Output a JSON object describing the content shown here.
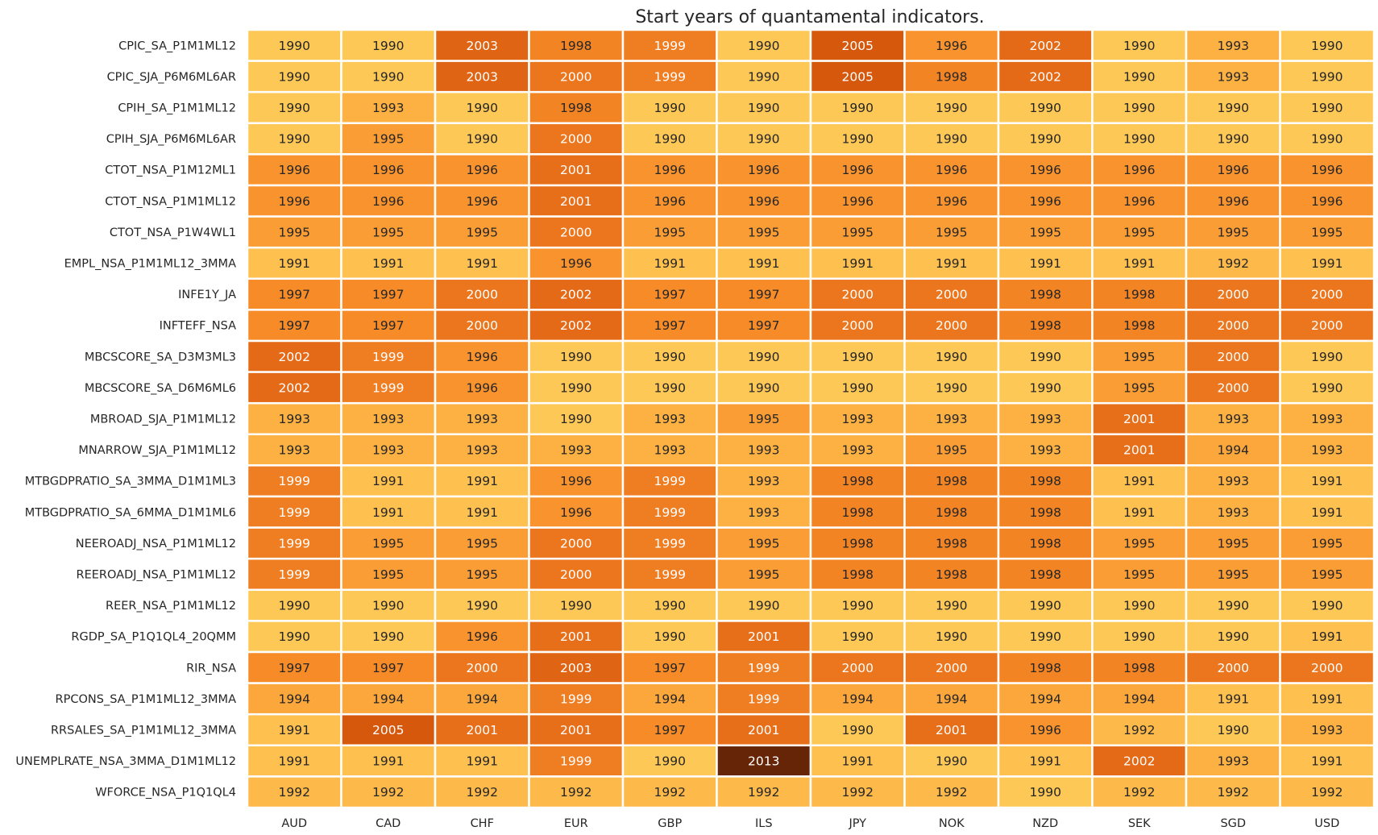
{
  "chart_data": {
    "type": "heatmap",
    "title": "Start years of quantamental indicators.",
    "xlabel": "",
    "ylabel": "",
    "colormap": "YlOrBr",
    "color_range": [
      1990,
      2013
    ],
    "columns": [
      "AUD",
      "CAD",
      "CHF",
      "EUR",
      "GBP",
      "ILS",
      "JPY",
      "NOK",
      "NZD",
      "SEK",
      "SGD",
      "USD"
    ],
    "rows": [
      "CPIC_SA_P1M1ML12",
      "CPIC_SJA_P6M6ML6AR",
      "CPIH_SA_P1M1ML12",
      "CPIH_SJA_P6M6ML6AR",
      "CTOT_NSA_P1M12ML1",
      "CTOT_NSA_P1M1ML12",
      "CTOT_NSA_P1W4WL1",
      "EMPL_NSA_P1M1ML12_3MMA",
      "INFE1Y_JA",
      "INFTEFF_NSA",
      "MBCSCORE_SA_D3M3ML3",
      "MBCSCORE_SA_D6M6ML6",
      "MBROAD_SJA_P1M1ML12",
      "MNARROW_SJA_P1M1ML12",
      "MTBGDPRATIO_SA_3MMA_D1M1ML3",
      "MTBGDPRATIO_SA_6MMA_D1M1ML6",
      "NEEROADJ_NSA_P1M1ML12",
      "REEROADJ_NSA_P1M1ML12",
      "REER_NSA_P1M1ML12",
      "RGDP_SA_P1Q1QL4_20QMM",
      "RIR_NSA",
      "RPCONS_SA_P1M1ML12_3MMA",
      "RRSALES_SA_P1M1ML12_3MMA",
      "UNEMPLRATE_NSA_3MMA_D1M1ML12",
      "WFORCE_NSA_P1Q1QL4"
    ],
    "values": [
      [
        1990,
        1990,
        2003,
        1998,
        1999,
        1990,
        2005,
        1996,
        2002,
        1990,
        1993,
        1990
      ],
      [
        1990,
        1990,
        2003,
        2000,
        1999,
        1990,
        2005,
        1998,
        2002,
        1990,
        1993,
        1990
      ],
      [
        1990,
        1993,
        1990,
        1998,
        1990,
        1990,
        1990,
        1990,
        1990,
        1990,
        1990,
        1990
      ],
      [
        1990,
        1995,
        1990,
        2000,
        1990,
        1990,
        1990,
        1990,
        1990,
        1990,
        1990,
        1990
      ],
      [
        1996,
        1996,
        1996,
        2001,
        1996,
        1996,
        1996,
        1996,
        1996,
        1996,
        1996,
        1996
      ],
      [
        1996,
        1996,
        1996,
        2001,
        1996,
        1996,
        1996,
        1996,
        1996,
        1996,
        1996,
        1996
      ],
      [
        1995,
        1995,
        1995,
        2000,
        1995,
        1995,
        1995,
        1995,
        1995,
        1995,
        1995,
        1995
      ],
      [
        1991,
        1991,
        1991,
        1996,
        1991,
        1991,
        1991,
        1991,
        1991,
        1991,
        1992,
        1991
      ],
      [
        1997,
        1997,
        2000,
        2002,
        1997,
        1997,
        2000,
        2000,
        1998,
        1998,
        2000,
        2000
      ],
      [
        1997,
        1997,
        2000,
        2002,
        1997,
        1997,
        2000,
        2000,
        1998,
        1998,
        2000,
        2000
      ],
      [
        2002,
        1999,
        1996,
        1990,
        1990,
        1990,
        1990,
        1990,
        1990,
        1995,
        2000,
        1990
      ],
      [
        2002,
        1999,
        1996,
        1990,
        1990,
        1990,
        1990,
        1990,
        1990,
        1995,
        2000,
        1990
      ],
      [
        1993,
        1993,
        1993,
        1990,
        1993,
        1995,
        1993,
        1993,
        1993,
        2001,
        1993,
        1993
      ],
      [
        1993,
        1993,
        1993,
        1993,
        1993,
        1993,
        1993,
        1995,
        1993,
        2001,
        1994,
        1993
      ],
      [
        1999,
        1991,
        1991,
        1996,
        1999,
        1993,
        1998,
        1998,
        1998,
        1991,
        1993,
        1991
      ],
      [
        1999,
        1991,
        1991,
        1996,
        1999,
        1993,
        1998,
        1998,
        1998,
        1991,
        1993,
        1991
      ],
      [
        1999,
        1995,
        1995,
        2000,
        1999,
        1995,
        1998,
        1998,
        1998,
        1995,
        1995,
        1995
      ],
      [
        1999,
        1995,
        1995,
        2000,
        1999,
        1995,
        1998,
        1998,
        1998,
        1995,
        1995,
        1995
      ],
      [
        1990,
        1990,
        1990,
        1990,
        1990,
        1990,
        1990,
        1990,
        1990,
        1990,
        1990,
        1990
      ],
      [
        1990,
        1990,
        1996,
        2001,
        1990,
        2001,
        1990,
        1990,
        1990,
        1990,
        1990,
        1991
      ],
      [
        1997,
        1997,
        2000,
        2003,
        1997,
        1999,
        2000,
        2000,
        1998,
        1998,
        2000,
        2000
      ],
      [
        1994,
        1994,
        1994,
        1999,
        1994,
        1999,
        1994,
        1994,
        1994,
        1994,
        1991,
        1991
      ],
      [
        1991,
        2005,
        2001,
        2001,
        1997,
        2001,
        1990,
        2001,
        1996,
        1992,
        1990,
        1993
      ],
      [
        1991,
        1991,
        1991,
        1999,
        1990,
        2013,
        1991,
        1990,
        1991,
        2002,
        1993,
        1991
      ],
      [
        1992,
        1992,
        1992,
        1992,
        1992,
        1992,
        1992,
        1992,
        1990,
        1992,
        1992,
        1992
      ]
    ]
  }
}
